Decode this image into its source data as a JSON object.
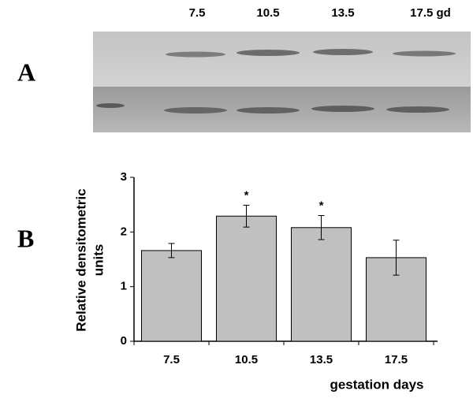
{
  "panel_labels": [
    "A",
    "B"
  ],
  "blot": {
    "lane_labels": [
      "7.5",
      "10.5",
      "13.5",
      "17.5 gd"
    ]
  },
  "chart_data": {
    "type": "bar",
    "y_label_lines": [
      "Relative densitometric",
      "units"
    ],
    "x_label": "gestation days",
    "categories": [
      "7.5",
      "10.5",
      "13.5",
      "17.5"
    ],
    "values": [
      1.66,
      2.29,
      2.08,
      1.53
    ],
    "errors": [
      0.13,
      0.2,
      0.22,
      0.32
    ],
    "significance": [
      null,
      "*",
      "*",
      null
    ],
    "color": "#c0c0c0",
    "ylim": [
      0,
      3
    ],
    "yticks": [
      0,
      1,
      2,
      3
    ]
  }
}
